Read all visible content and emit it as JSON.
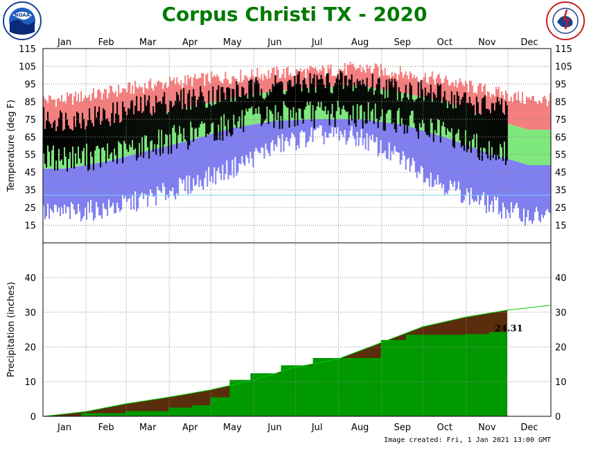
{
  "title": "Corpus Christi TX - 2020",
  "footer": "Image created: Fri, 1 Jan 2021 13:00 GMT",
  "logos": {
    "left": "noaa-logo",
    "right": "nws-logo"
  },
  "colors": {
    "title": "#007a00",
    "record_high": "#f47f7f",
    "normal_range": "#7ee87e",
    "record_low": "#7f7ff0",
    "actual": "#000000",
    "precip_normal": "#5a2d0c",
    "precip_actual": "#009900",
    "grid": "#888888"
  },
  "chart_data": [
    {
      "type": "bar",
      "name": "temperature",
      "ylabel": "Temperature (deg F)",
      "ylim": [
        5,
        115
      ],
      "yticks": [
        15,
        25,
        35,
        45,
        55,
        65,
        75,
        85,
        95,
        105,
        115
      ],
      "months": [
        "Jan",
        "Feb",
        "Mar",
        "Apr",
        "May",
        "Jun",
        "Jul",
        "Aug",
        "Sep",
        "Oct",
        "Nov",
        "Dec"
      ],
      "x_unit": "day of year",
      "layers": [
        "record high",
        "normal range",
        "record low",
        "observed daily range"
      ],
      "normal_high_by_month": [
        67,
        71,
        77,
        82,
        87,
        91,
        93,
        94,
        90,
        85,
        76,
        69
      ],
      "normal_low_by_month": [
        47,
        51,
        57,
        63,
        70,
        74,
        75,
        75,
        72,
        65,
        56,
        49
      ],
      "record_high_by_month": [
        86,
        90,
        94,
        97,
        99,
        101,
        102,
        104,
        101,
        97,
        91,
        86
      ],
      "record_low_by_month": [
        22,
        24,
        30,
        38,
        47,
        60,
        66,
        65,
        52,
        38,
        27,
        20
      ],
      "observed_max_by_month": [
        75,
        77,
        83,
        87,
        90,
        94,
        96,
        96,
        92,
        88,
        82,
        79
      ],
      "observed_min_by_month": [
        53,
        54,
        60,
        66,
        72,
        77,
        78,
        78,
        74,
        66,
        58,
        52
      ],
      "observed_through_day": 335,
      "reference_line": 32
    },
    {
      "type": "area",
      "name": "precipitation",
      "ylabel": "Precipitation (inches)",
      "ylim": [
        0,
        50
      ],
      "yticks": [
        0,
        10,
        20,
        30,
        40
      ],
      "months": [
        "Jan",
        "Feb",
        "Mar",
        "Apr",
        "May",
        "Jun",
        "Jul",
        "Aug",
        "Sep",
        "Oct",
        "Nov",
        "Dec"
      ],
      "x_unit": "day of year",
      "normal_cumulative": {
        "x": [
          1,
          32,
          60,
          91,
          121,
          152,
          182,
          213,
          244,
          274,
          305,
          335,
          366
        ],
        "y": [
          0,
          1.4,
          3.6,
          5.5,
          7.6,
          10.4,
          14.1,
          16.5,
          21.2,
          25.8,
          28.6,
          30.6,
          32.0
        ]
      },
      "actual_cumulative": {
        "x": [
          1,
          28,
          60,
          91,
          108,
          121,
          135,
          150,
          172,
          195,
          244,
          262,
          305,
          322,
          335
        ],
        "y": [
          0,
          0.9,
          1.5,
          2.5,
          3.2,
          5.5,
          10.5,
          12.4,
          14.7,
          16.8,
          22.0,
          23.5,
          23.7,
          24.31,
          24.31
        ]
      },
      "annotation": "24.31"
    }
  ]
}
